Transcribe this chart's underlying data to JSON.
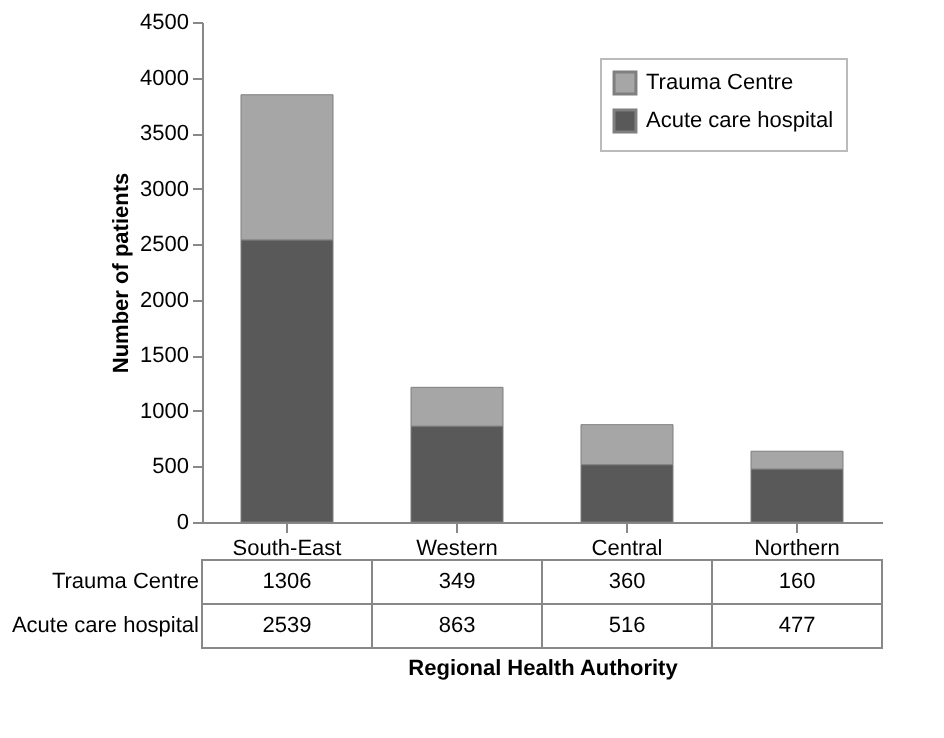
{
  "chart_data": {
    "type": "bar",
    "stacked": true,
    "xlabel": "Regional Health Authority",
    "ylabel": "Number of patients",
    "categories": [
      "South-East",
      "Western",
      "Central",
      "Northern"
    ],
    "series": [
      {
        "name": "Acute care hospital",
        "color": "#595959",
        "values": [
          2539,
          863,
          516,
          477
        ]
      },
      {
        "name": "Trauma Centre",
        "color": "#a6a6a6",
        "values": [
          1306,
          349,
          360,
          160
        ]
      }
    ],
    "ylim": [
      0,
      4500
    ],
    "yticks": [
      0,
      500,
      1000,
      1500,
      2000,
      2500,
      3000,
      3500,
      4000,
      4500
    ],
    "grid": false,
    "legend": "top right",
    "data_labels": true
  }
}
